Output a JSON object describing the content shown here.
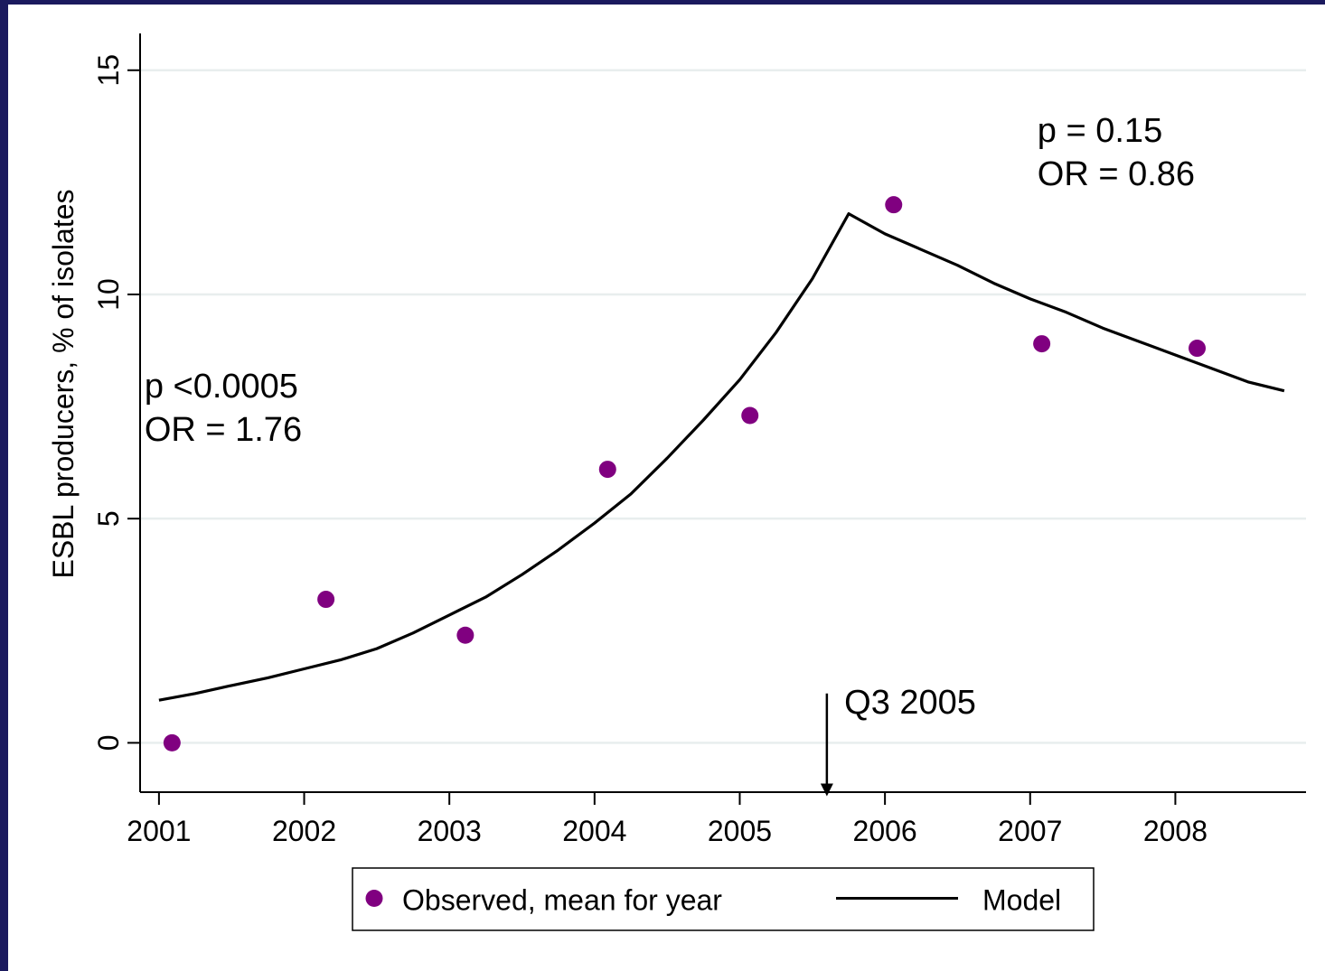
{
  "chart_data": {
    "type": "line",
    "title": "",
    "xlabel": "",
    "ylabel": "ESBL producers, % of isolates",
    "xlim": [
      2000.87,
      2008.9
    ],
    "ylim": [
      -1.1,
      15.7
    ],
    "x_ticks": [
      {
        "value": 2001,
        "label": "2001"
      },
      {
        "value": 2002,
        "label": "2002"
      },
      {
        "value": 2003,
        "label": "2003"
      },
      {
        "value": 2004,
        "label": "2004"
      },
      {
        "value": 2005,
        "label": "2005"
      },
      {
        "value": 2006,
        "label": "2006"
      },
      {
        "value": 2007,
        "label": "2007"
      },
      {
        "value": 2008,
        "label": "2008"
      }
    ],
    "y_ticks": [
      {
        "value": 0,
        "label": "0"
      },
      {
        "value": 5,
        "label": "5"
      },
      {
        "value": 10,
        "label": "10"
      },
      {
        "value": 15,
        "label": "15"
      }
    ],
    "grid": {
      "horizontal": true,
      "vertical": false,
      "color": "#e8eeee"
    },
    "series": [
      {
        "name": "Observed, mean for year",
        "kind": "scatter",
        "color": "#800080",
        "points": [
          {
            "x": 2001.09,
            "y": 0.0
          },
          {
            "x": 2002.15,
            "y": 3.2
          },
          {
            "x": 2003.11,
            "y": 2.4
          },
          {
            "x": 2004.09,
            "y": 6.1
          },
          {
            "x": 2005.07,
            "y": 7.3
          },
          {
            "x": 2006.06,
            "y": 12.0
          },
          {
            "x": 2007.08,
            "y": 8.9
          },
          {
            "x": 2008.15,
            "y": 8.8
          }
        ]
      },
      {
        "name": "Model",
        "kind": "line",
        "color": "#000000",
        "points": [
          {
            "x": 2001.0,
            "y": 0.95
          },
          {
            "x": 2001.25,
            "y": 1.1
          },
          {
            "x": 2001.5,
            "y": 1.28
          },
          {
            "x": 2001.75,
            "y": 1.45
          },
          {
            "x": 2002.0,
            "y": 1.65
          },
          {
            "x": 2002.25,
            "y": 1.85
          },
          {
            "x": 2002.5,
            "y": 2.1
          },
          {
            "x": 2002.75,
            "y": 2.45
          },
          {
            "x": 2003.0,
            "y": 2.85
          },
          {
            "x": 2003.25,
            "y": 3.25
          },
          {
            "x": 2003.5,
            "y": 3.75
          },
          {
            "x": 2003.75,
            "y": 4.3
          },
          {
            "x": 2004.0,
            "y": 4.9
          },
          {
            "x": 2004.25,
            "y": 5.55
          },
          {
            "x": 2004.5,
            "y": 6.35
          },
          {
            "x": 2004.75,
            "y": 7.2
          },
          {
            "x": 2005.0,
            "y": 8.1
          },
          {
            "x": 2005.25,
            "y": 9.15
          },
          {
            "x": 2005.5,
            "y": 10.35
          },
          {
            "x": 2005.75,
            "y": 11.8
          },
          {
            "x": 2006.0,
            "y": 11.35
          },
          {
            "x": 2006.25,
            "y": 11.0
          },
          {
            "x": 2006.5,
            "y": 10.65
          },
          {
            "x": 2006.75,
            "y": 10.25
          },
          {
            "x": 2007.0,
            "y": 9.9
          },
          {
            "x": 2007.25,
            "y": 9.6
          },
          {
            "x": 2007.5,
            "y": 9.25
          },
          {
            "x": 2007.75,
            "y": 8.95
          },
          {
            "x": 2008.0,
            "y": 8.65
          },
          {
            "x": 2008.25,
            "y": 8.35
          },
          {
            "x": 2008.5,
            "y": 8.05
          },
          {
            "x": 2008.75,
            "y": 7.85
          }
        ]
      }
    ],
    "annotations": [
      {
        "id": "pre",
        "lines": [
          "p <0.0005",
          "OR = 1.76"
        ],
        "x": 2000.9,
        "y": 7.7
      },
      {
        "id": "post",
        "lines": [
          "p = 0.15",
          "OR = 0.86"
        ],
        "x": 2007.05,
        "y": 13.4
      },
      {
        "id": "intervention",
        "label": "Q3 2005",
        "arrow_x": 2005.6,
        "arrow_from_y": 1.1,
        "arrow_to_y": -1.15,
        "label_x": 2005.72,
        "label_y": 0.65
      }
    ],
    "legend": {
      "placement": "bottom-center",
      "entries": [
        {
          "label": "Observed, mean for year",
          "symbol": "dot",
          "color": "#800080"
        },
        {
          "label": "Model",
          "symbol": "line",
          "color": "#000000"
        }
      ]
    }
  }
}
